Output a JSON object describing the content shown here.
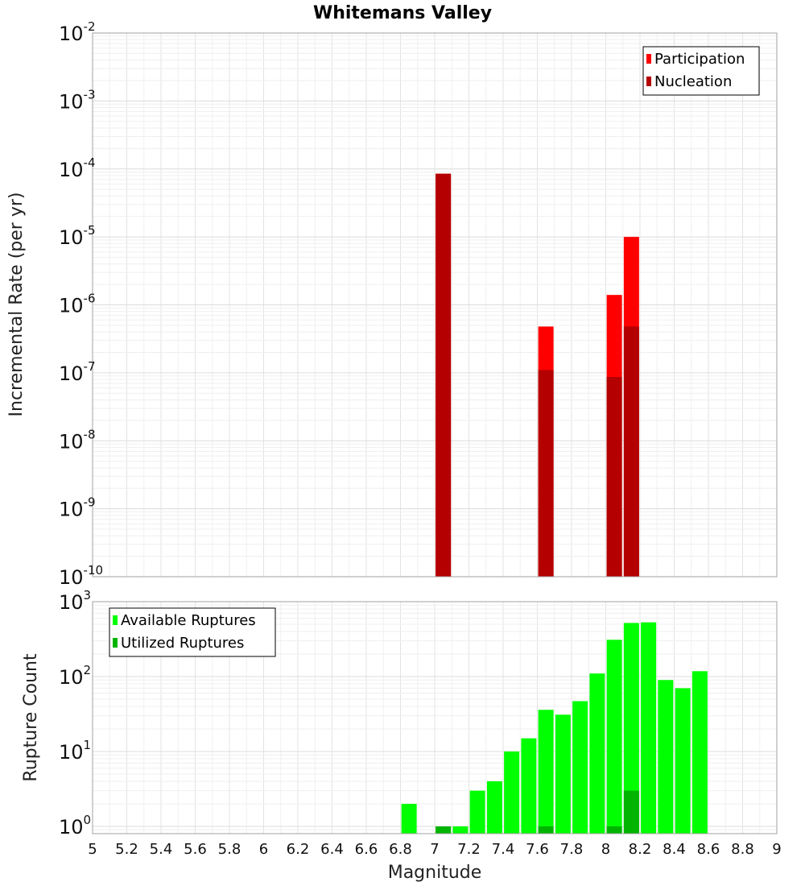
{
  "chart_data": [
    {
      "type": "bar",
      "title": "Whitemans Valley",
      "ylabel": "Incremental Rate (per yr)",
      "xlabel": "",
      "y_scale": "log",
      "ylim": [
        1e-10,
        0.01
      ],
      "xlim": [
        5,
        9
      ],
      "grid": true,
      "legend_position": "top-right",
      "y_tick_labels": [
        {
          "base": "10",
          "exp": "-10"
        },
        {
          "base": "10",
          "exp": "-9"
        },
        {
          "base": "10",
          "exp": "-8"
        },
        {
          "base": "10",
          "exp": "-7"
        },
        {
          "base": "10",
          "exp": "-6"
        },
        {
          "base": "10",
          "exp": "-5"
        },
        {
          "base": "10",
          "exp": "-4"
        },
        {
          "base": "10",
          "exp": "-3"
        },
        {
          "base": "10",
          "exp": "-2"
        }
      ],
      "series": [
        {
          "name": "Participation",
          "color": "#ff0000",
          "x": [
            7.05,
            7.65,
            8.05,
            8.15
          ],
          "values": [
            8.5e-05,
            4.8e-07,
            1.4e-06,
            1e-05
          ]
        },
        {
          "name": "Nucleation",
          "color": "#b40000",
          "x": [
            7.05,
            7.65,
            8.05,
            8.15
          ],
          "values": [
            8.5e-05,
            1.1e-07,
            8.7e-08,
            4.8e-07
          ]
        }
      ]
    },
    {
      "type": "bar",
      "title": "",
      "ylabel": "Rupture Count",
      "xlabel": "Magnitude",
      "y_scale": "log",
      "ylim": [
        0.8,
        1000
      ],
      "xlim": [
        5,
        9
      ],
      "grid": true,
      "legend_position": "top-left",
      "x_ticks": [
        "5",
        "5.2",
        "5.4",
        "5.6",
        "5.8",
        "6",
        "6.2",
        "6.4",
        "6.6",
        "6.8",
        "7",
        "7.2",
        "7.4",
        "7.6",
        "7.8",
        "8",
        "8.2",
        "8.4",
        "8.6",
        "8.8",
        "9"
      ],
      "y_tick_labels": [
        {
          "base": "10",
          "exp": "0"
        },
        {
          "base": "10",
          "exp": "1"
        },
        {
          "base": "10",
          "exp": "2"
        },
        {
          "base": "10",
          "exp": "3"
        }
      ],
      "series": [
        {
          "name": "Available Ruptures",
          "color": "#00ff00",
          "x": [
            6.85,
            7.05,
            7.15,
            7.25,
            7.35,
            7.45,
            7.55,
            7.65,
            7.75,
            7.85,
            7.95,
            8.05,
            8.15,
            8.25,
            8.35,
            8.45,
            8.55
          ],
          "values": [
            2,
            1,
            1,
            3,
            4,
            10,
            15,
            36,
            31,
            47,
            110,
            310,
            520,
            530,
            90,
            70,
            118
          ]
        },
        {
          "name": "Utilized Ruptures",
          "color": "#00b400",
          "x": [
            7.05,
            7.65,
            8.05,
            8.15
          ],
          "values": [
            1,
            1,
            1,
            3
          ]
        }
      ]
    }
  ]
}
